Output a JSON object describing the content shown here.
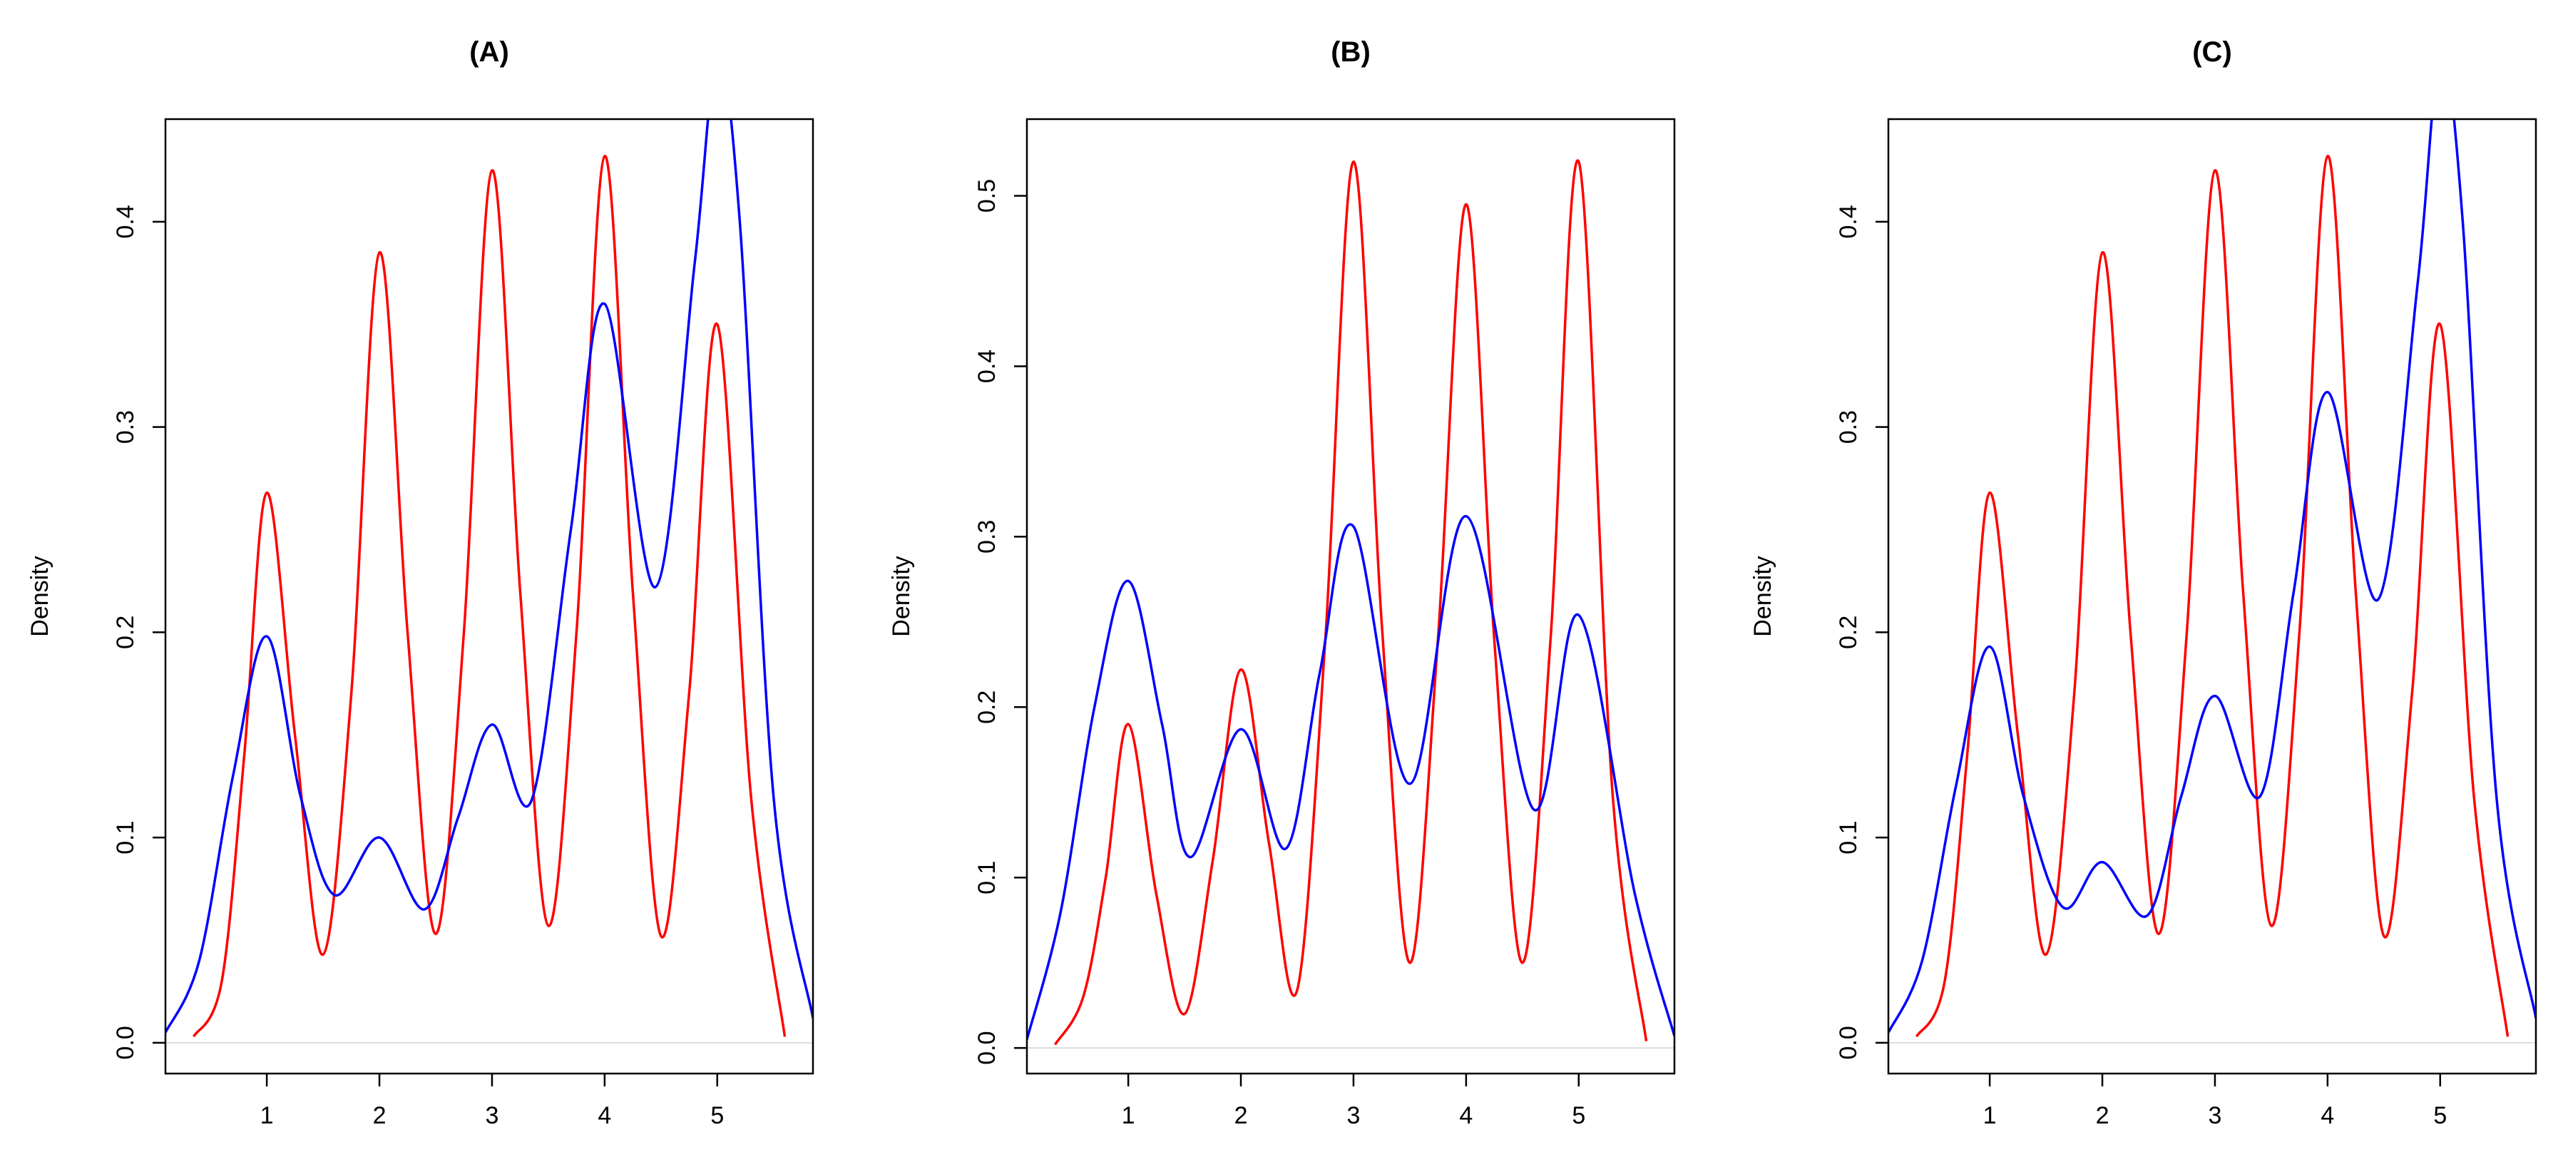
{
  "chart_data": [
    {
      "type": "line",
      "title": "(A)",
      "xlabel": "",
      "ylabel": "Density",
      "xlim": [
        0.1,
        5.85
      ],
      "ylim": [
        -0.015,
        0.45
      ],
      "x_ticks": [
        1,
        2,
        3,
        4,
        5
      ],
      "y_ticks": [
        0.0,
        0.1,
        0.2,
        0.3,
        0.4
      ],
      "y_tick_labels": [
        "0.0",
        "0.1",
        "0.2",
        "0.3",
        "0.4"
      ],
      "grid": false,
      "series": [
        {
          "color": "#ff0000",
          "x": [
            0.35,
            0.6,
            0.8,
            1.0,
            1.25,
            1.5,
            1.75,
            2.0,
            2.25,
            2.5,
            2.75,
            3.0,
            3.25,
            3.5,
            3.75,
            4.0,
            4.25,
            4.5,
            4.75,
            5.0,
            5.3,
            5.6
          ],
          "y": [
            0.003,
            0.03,
            0.14,
            0.268,
            0.15,
            0.043,
            0.17,
            0.385,
            0.2,
            0.053,
            0.2,
            0.425,
            0.22,
            0.057,
            0.2,
            0.432,
            0.22,
            0.052,
            0.17,
            0.35,
            0.12,
            0.003
          ]
        },
        {
          "color": "#0000ff",
          "x": [
            0.1,
            0.4,
            0.7,
            1.0,
            1.3,
            1.6,
            2.0,
            2.4,
            2.7,
            3.0,
            3.35,
            3.7,
            4.0,
            4.45,
            4.8,
            5.0,
            5.2,
            5.5,
            5.85
          ],
          "y": [
            0.005,
            0.04,
            0.13,
            0.198,
            0.12,
            0.072,
            0.1,
            0.065,
            0.11,
            0.155,
            0.118,
            0.25,
            0.36,
            0.222,
            0.38,
            0.48,
            0.4,
            0.12,
            0.012
          ]
        }
      ]
    },
    {
      "type": "line",
      "title": "(B)",
      "xlabel": "",
      "ylabel": "Density",
      "xlim": [
        0.1,
        5.85
      ],
      "ylim": [
        -0.015,
        0.545
      ],
      "x_ticks": [
        1,
        2,
        3,
        4,
        5
      ],
      "y_ticks": [
        0.0,
        0.1,
        0.2,
        0.3,
        0.4,
        0.5
      ],
      "y_tick_labels": [
        "0.0",
        "0.1",
        "0.2",
        "0.3",
        "0.4",
        "0.5"
      ],
      "grid": false,
      "series": [
        {
          "color": "#ff0000",
          "x": [
            0.35,
            0.6,
            0.8,
            1.0,
            1.25,
            1.5,
            1.75,
            2.0,
            2.25,
            2.5,
            2.75,
            3.0,
            3.25,
            3.5,
            3.75,
            4.0,
            4.25,
            4.5,
            4.75,
            5.0,
            5.3,
            5.6
          ],
          "y": [
            0.002,
            0.03,
            0.1,
            0.19,
            0.09,
            0.02,
            0.11,
            0.222,
            0.12,
            0.034,
            0.24,
            0.52,
            0.25,
            0.05,
            0.24,
            0.495,
            0.24,
            0.05,
            0.24,
            0.52,
            0.15,
            0.004
          ]
        },
        {
          "color": "#0000ff",
          "x": [
            0.1,
            0.4,
            0.7,
            1.0,
            1.3,
            1.55,
            2.0,
            2.4,
            2.7,
            3.0,
            3.5,
            4.0,
            4.6,
            5.0,
            5.5,
            5.85
          ],
          "y": [
            0.005,
            0.08,
            0.2,
            0.274,
            0.19,
            0.112,
            0.187,
            0.117,
            0.22,
            0.306,
            0.155,
            0.312,
            0.14,
            0.254,
            0.09,
            0.007
          ]
        }
      ]
    },
    {
      "type": "line",
      "title": "(C)",
      "xlabel": "",
      "ylabel": "Density",
      "xlim": [
        0.1,
        5.85
      ],
      "ylim": [
        -0.015,
        0.45
      ],
      "x_ticks": [
        1,
        2,
        3,
        4,
        5
      ],
      "y_ticks": [
        0.0,
        0.1,
        0.2,
        0.3,
        0.4
      ],
      "y_tick_labels": [
        "0.0",
        "0.1",
        "0.2",
        "0.3",
        "0.4"
      ],
      "grid": false,
      "series": [
        {
          "color": "#ff0000",
          "x": [
            0.35,
            0.6,
            0.8,
            1.0,
            1.25,
            1.5,
            1.75,
            2.0,
            2.25,
            2.5,
            2.75,
            3.0,
            3.25,
            3.5,
            3.75,
            4.0,
            4.25,
            4.5,
            4.75,
            5.0,
            5.3,
            5.6
          ],
          "y": [
            0.003,
            0.03,
            0.14,
            0.268,
            0.15,
            0.043,
            0.17,
            0.385,
            0.2,
            0.053,
            0.2,
            0.425,
            0.22,
            0.057,
            0.2,
            0.432,
            0.22,
            0.052,
            0.17,
            0.35,
            0.12,
            0.003
          ]
        },
        {
          "color": "#0000ff",
          "x": [
            0.1,
            0.4,
            0.7,
            1.0,
            1.3,
            1.65,
            2.0,
            2.4,
            2.7,
            3.0,
            3.4,
            3.7,
            4.0,
            4.45,
            4.8,
            5.0,
            5.2,
            5.5,
            5.85
          ],
          "y": [
            0.005,
            0.04,
            0.125,
            0.193,
            0.12,
            0.066,
            0.088,
            0.062,
            0.12,
            0.169,
            0.12,
            0.22,
            0.317,
            0.216,
            0.37,
            0.48,
            0.4,
            0.12,
            0.012
          ]
        }
      ]
    }
  ]
}
